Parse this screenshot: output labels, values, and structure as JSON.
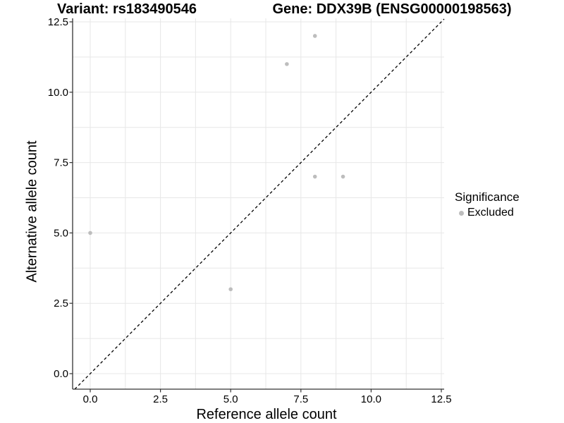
{
  "titles": {
    "left": "Variant: rs183490546",
    "right": "Gene: DDX39B (ENSG00000198563)"
  },
  "axes": {
    "x_label": "Reference allele count",
    "y_label": "Alternative allele count"
  },
  "legend": {
    "title": "Significance",
    "items": [
      {
        "label": "Excluded",
        "color": "#bdbdbd"
      }
    ]
  },
  "chart_data": {
    "type": "scatter",
    "title": "Variant: rs183490546    Gene: DDX39B (ENSG00000198563)",
    "xlabel": "Reference allele count",
    "ylabel": "Alternative allele count",
    "xlim": [
      0,
      12.5
    ],
    "ylim": [
      0,
      12.5
    ],
    "x_ticks": {
      "values": [
        0,
        2.5,
        5,
        7.5,
        10,
        12.5
      ],
      "labels": [
        "0.0",
        "2.5",
        "5.0",
        "7.5",
        "10.0",
        "12.5"
      ]
    },
    "y_ticks": {
      "values": [
        0,
        2.5,
        5,
        7.5,
        10,
        12.5
      ],
      "labels": [
        "0.0",
        "2.5",
        "5.0",
        "7.5",
        "10.0",
        "12.5"
      ]
    },
    "minor_step": 1.25,
    "grid": true,
    "legend_position": "right",
    "series": [
      {
        "name": "Excluded",
        "color": "#bdbdbd",
        "points": [
          [
            0,
            5
          ],
          [
            5,
            3
          ],
          [
            7,
            11
          ],
          [
            8,
            12
          ],
          [
            8,
            7
          ],
          [
            9,
            7
          ]
        ]
      }
    ],
    "reference_line": {
      "slope": 1,
      "intercept": 0,
      "style": "dashed",
      "color": "#000000"
    },
    "colors": {
      "point": "#bdbdbd",
      "grid": "#e7e7e7",
      "axis": "#333333",
      "background": "#ffffff",
      "text": "#000000"
    }
  }
}
